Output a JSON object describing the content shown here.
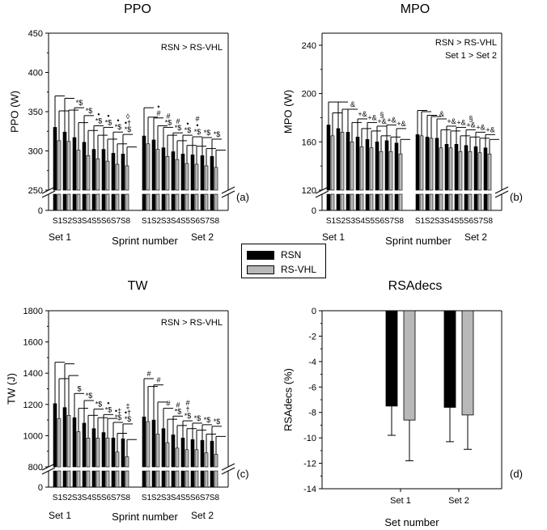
{
  "colors": {
    "rsn": "#000000",
    "rs_vhl": "#b8b8b8"
  },
  "legend": {
    "rsn": "RSN",
    "rs_vhl": "RS-VHL"
  },
  "chart_data": [
    {
      "id": "a",
      "type": "bar",
      "title": "PPO",
      "ylabel": "PPO (W)",
      "xlabel": "Sprint number",
      "panel_label": "(a)",
      "ylim": [
        250,
        450
      ],
      "y_ticks": [
        250,
        300,
        350,
        400,
        450
      ],
      "y_break": true,
      "y_zero_label": "0",
      "annotations": [
        "RSN > RS-VHL"
      ],
      "categories": [
        "S1",
        "S2",
        "S3",
        "S4",
        "S5",
        "S6",
        "S7",
        "S8",
        "S1",
        "S2",
        "S3",
        "S4",
        "S5",
        "S6",
        "S7",
        "S8"
      ],
      "set_labels": [
        "Set 1",
        "Set 2"
      ],
      "series": [
        {
          "name": "RSN",
          "values": [
            330,
            324,
            317,
            311,
            302,
            302,
            297,
            296,
            319,
            314,
            304,
            299,
            296,
            295,
            294,
            293
          ],
          "errors": [
            40,
            43,
            38,
            34,
            30,
            28,
            27,
            25,
            36,
            28,
            26,
            24,
            24,
            23,
            23,
            22
          ]
        },
        {
          "name": "RS-VHL",
          "values": [
            313,
            312,
            301,
            294,
            290,
            287,
            283,
            281,
            309,
            302,
            293,
            289,
            284,
            283,
            281,
            279
          ],
          "errors": [
            38,
            40,
            35,
            32,
            30,
            28,
            26,
            24,
            34,
            30,
            27,
            24,
            23,
            23,
            22,
            22
          ]
        }
      ],
      "markers": [
        "",
        "",
        "*$",
        "*$",
        "•\n*$",
        "•\n*$",
        "•\n*$",
        "◊\n•†\n*$",
        "",
        "•\n#",
        "#\n*$",
        "#\n*$",
        "•\n*$",
        "#\n•\n*$",
        "*$",
        "*$"
      ]
    },
    {
      "id": "b",
      "type": "bar",
      "title": "MPO",
      "ylabel": "MPO (W)",
      "xlabel": "Sprint number",
      "panel_label": "(b)",
      "ylim": [
        120,
        250
      ],
      "y_ticks": [
        120,
        160,
        200,
        240
      ],
      "y_break": true,
      "y_zero_label": "0",
      "annotations": [
        "RSN > RS-VHL",
        "Set 1 > Set 2"
      ],
      "categories": [
        "S1",
        "S2",
        "S3",
        "S4",
        "S5",
        "S6",
        "S7",
        "S8",
        "S1",
        "S2",
        "S3",
        "S4",
        "S5",
        "S6",
        "S7",
        "S8"
      ],
      "set_labels": [
        "Set 1",
        "Set 2"
      ],
      "series": [
        {
          "name": "RSN",
          "values": [
            174,
            171,
            168,
            164,
            162,
            160,
            161,
            159,
            166,
            164,
            163,
            158,
            158,
            157,
            156,
            155
          ],
          "errors": [
            19,
            22,
            19,
            15,
            14,
            13,
            13,
            12,
            20,
            18,
            16,
            15,
            14,
            13,
            12,
            11
          ]
        },
        {
          "name": "RS-VHL",
          "values": [
            165,
            168,
            160,
            156,
            155,
            152,
            152,
            150,
            165,
            163,
            155,
            155,
            152,
            152,
            151,
            150
          ],
          "errors": [
            19,
            19,
            16,
            15,
            14,
            13,
            12,
            12,
            20,
            18,
            15,
            14,
            13,
            12,
            12,
            12
          ]
        }
      ],
      "markers": [
        "",
        "",
        "&",
        "+&",
        "+&",
        "§\n+&",
        "+&",
        "+&",
        "",
        "",
        "&",
        "+&",
        "+&",
        "§\n+&",
        "+&",
        "+&"
      ]
    },
    {
      "id": "c",
      "type": "bar",
      "title": "TW",
      "ylabel": "TW (J)",
      "xlabel": "Sprint number",
      "panel_label": "(c)",
      "ylim": [
        800,
        1800
      ],
      "y_ticks": [
        800,
        1000,
        1200,
        1400,
        1600,
        1800
      ],
      "y_break": true,
      "y_zero_label": "0",
      "annotations": [
        "RSN > RS-VHL"
      ],
      "categories": [
        "S1",
        "S2",
        "S3",
        "S4",
        "S5",
        "S6",
        "S7",
        "S8",
        "S1",
        "S2",
        "S3",
        "S4",
        "S5",
        "S6",
        "S7",
        "S8"
      ],
      "set_labels": [
        "Set 1",
        "Set 2"
      ],
      "series": [
        {
          "name": "RSN",
          "values": [
            1205,
            1180,
            1115,
            1080,
            1045,
            1020,
            985,
            980,
            1120,
            1100,
            1045,
            1005,
            985,
            975,
            970,
            965
          ],
          "errors": [
            265,
            280,
            155,
            145,
            125,
            115,
            100,
            95,
            245,
            225,
            130,
            120,
            110,
            105,
            100,
            95
          ]
        },
        {
          "name": "RS-VHL",
          "values": [
            1110,
            1130,
            1025,
            985,
            985,
            985,
            895,
            865,
            1090,
            1010,
            955,
            920,
            910,
            910,
            890,
            880
          ],
          "errors": [
            255,
            255,
            150,
            145,
            130,
            125,
            120,
            110,
            225,
            205,
            150,
            145,
            135,
            125,
            120,
            115
          ]
        }
      ],
      "markers": [
        "",
        "",
        "$",
        "*$",
        "*$",
        "•\n*$",
        "•‡\n*$",
        "‡\n•†\n*$",
        "#",
        "#",
        "#",
        "#\n*$",
        "#\n†\n*$",
        "*$",
        "*$",
        "*$"
      ]
    },
    {
      "id": "d",
      "type": "bar",
      "title": "RSAdecs",
      "ylabel": "RSAdecs (%)",
      "xlabel": "Set number",
      "panel_label": "(d)",
      "ylim": [
        -14,
        0
      ],
      "y_ticks": [
        0,
        -2,
        -4,
        -6,
        -8,
        -10,
        -12,
        -14
      ],
      "categories": [
        "Set 1",
        "Set 2"
      ],
      "series": [
        {
          "name": "RSN",
          "values": [
            -7.5,
            -7.6
          ],
          "errors": [
            2.3,
            2.7
          ]
        },
        {
          "name": "RS-VHL",
          "values": [
            -8.6,
            -8.2
          ],
          "errors": [
            3.2,
            2.7
          ]
        }
      ]
    }
  ]
}
